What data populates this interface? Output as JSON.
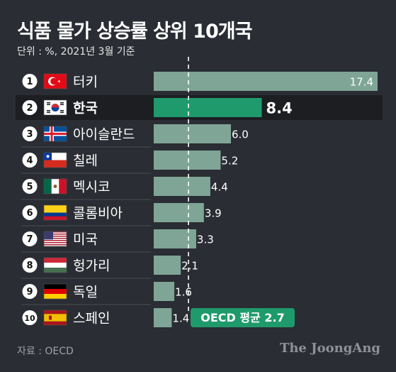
{
  "header": {
    "title": "식품 물가 상승률 상위 10개국",
    "subtitle": "단위 : %, 2021년 3월 기준"
  },
  "footer": {
    "source": "자료 : OECD",
    "brand": "The JoongAng"
  },
  "colors": {
    "background": "#2a2d33",
    "bar": "#7fa596",
    "bar_highlight": "#1f9a6c",
    "highlight_row_bg": "#1c1e22",
    "avg_badge": "#1f9a6c"
  },
  "chart_data": {
    "type": "bar",
    "orientation": "horizontal",
    "categories": [
      "터키",
      "한국",
      "아이슬란드",
      "칠레",
      "멕시코",
      "콜롬비아",
      "미국",
      "헝가리",
      "독일",
      "스페인"
    ],
    "ranks": [
      "1",
      "2",
      "3",
      "4",
      "5",
      "6",
      "7",
      "8",
      "9",
      "10"
    ],
    "values": [
      17.4,
      8.4,
      6.0,
      5.2,
      4.4,
      3.9,
      3.3,
      2.1,
      1.6,
      1.4
    ],
    "value_labels": [
      "17.4",
      "8.4",
      "6.0",
      "5.2",
      "4.4",
      "3.9",
      "3.3",
      "2.1",
      "1.6",
      "1.4"
    ],
    "highlight_index": 1,
    "flags": [
      "turkey-flag",
      "south-korea-flag",
      "iceland-flag",
      "chile-flag",
      "mexico-flag",
      "colombia-flag",
      "usa-flag",
      "hungary-flag",
      "germany-flag",
      "spain-flag"
    ],
    "reference_line": {
      "value": 2.7,
      "label": "OECD 평균 2.7",
      "style": "dashed"
    },
    "xlim": [
      0,
      17.4
    ],
    "grid": false,
    "legend": "none"
  }
}
